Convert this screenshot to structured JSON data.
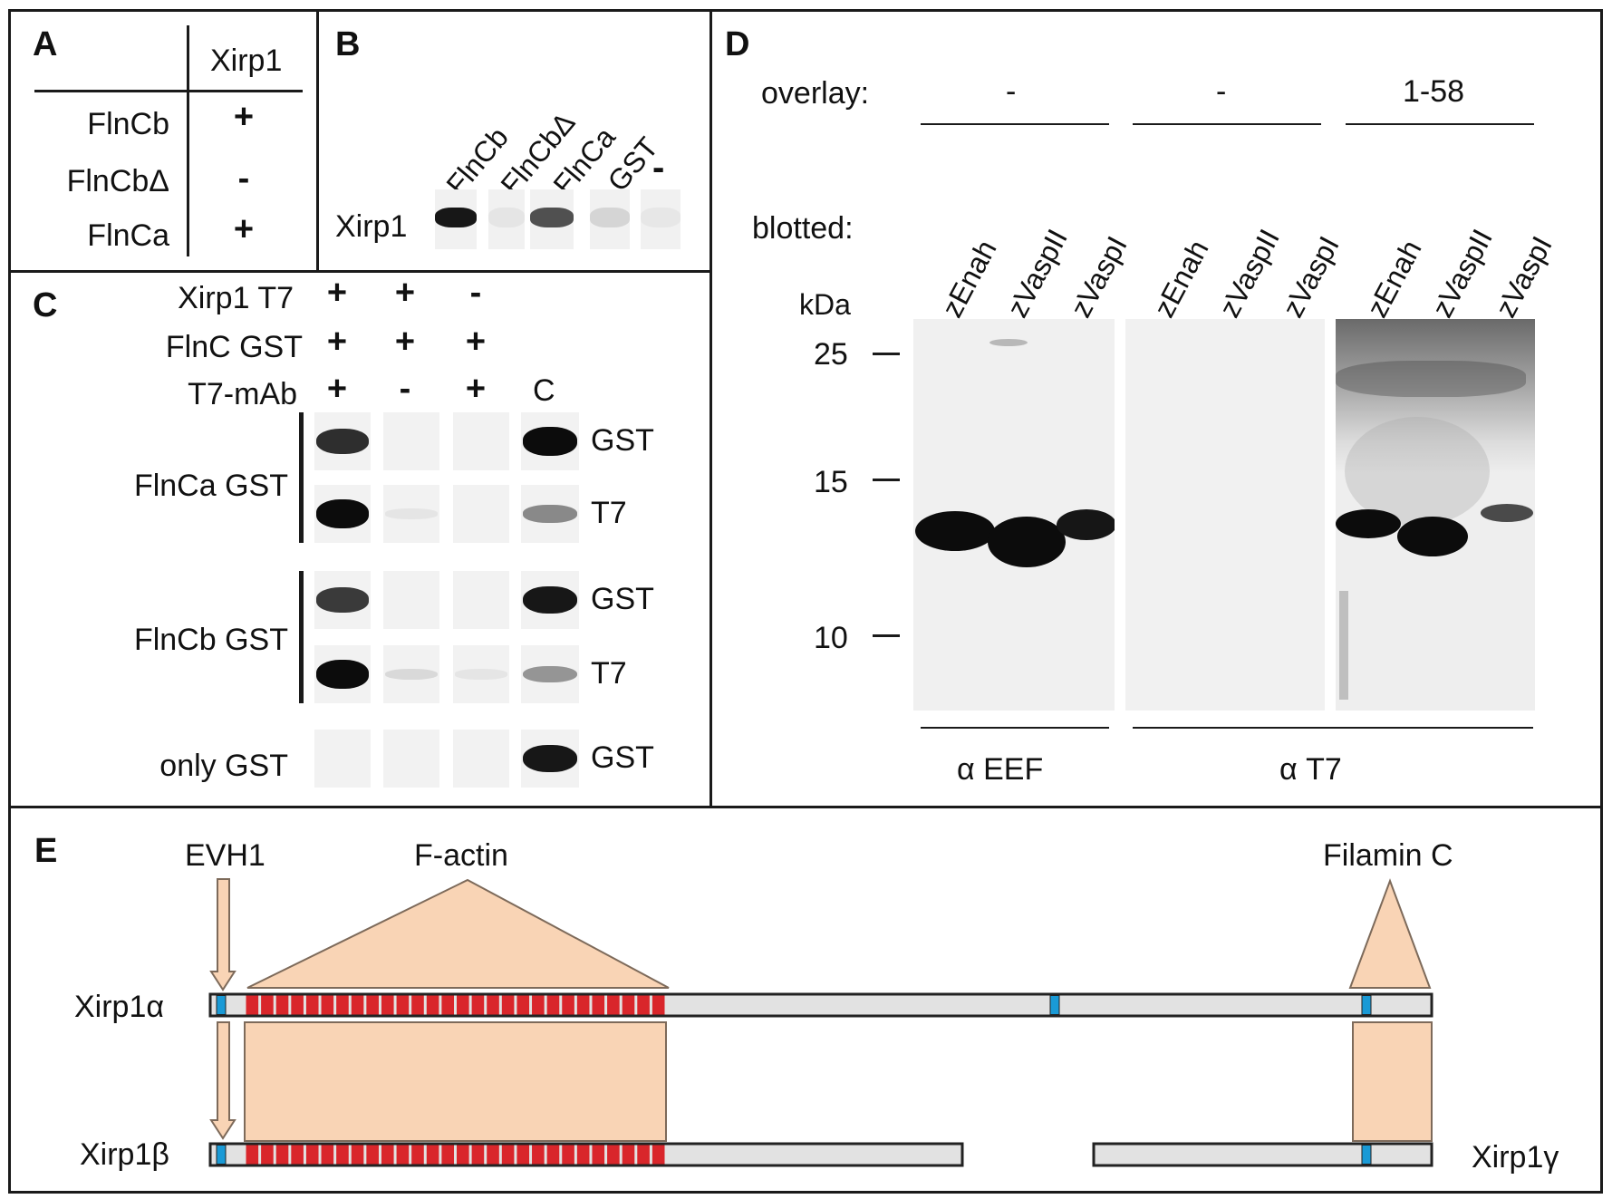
{
  "panels": {
    "A": {
      "label": "A",
      "column_header": "Xirp1",
      "rows": [
        {
          "name": "FlnCb",
          "result": "+"
        },
        {
          "name": "FlnCbΔ",
          "result": "-"
        },
        {
          "name": "FlnCa",
          "result": "+"
        }
      ]
    },
    "B": {
      "label": "B",
      "row_label": "Xirp1",
      "lanes": [
        "FlnCb",
        "FlnCbΔ",
        "FlnCa",
        "GST",
        "-"
      ],
      "band_intensity": [
        0.95,
        0.05,
        0.7,
        0.12,
        0.04
      ]
    },
    "C": {
      "label": "C",
      "conditions": [
        {
          "name": "Xirp1 T7",
          "values": [
            "+",
            "+",
            "-"
          ]
        },
        {
          "name": "FlnC GST",
          "values": [
            "+",
            "+",
            "+"
          ]
        },
        {
          "name": "T7-mAb",
          "values": [
            "+",
            "-",
            "+"
          ],
          "control": "C"
        }
      ],
      "groups": [
        {
          "name": "FlnCa GST",
          "blots": [
            {
              "probe": "GST",
              "lane_intensity": [
                0.85,
                0.0,
                0.0,
                1.0
              ]
            },
            {
              "probe": "T7",
              "lane_intensity": [
                1.0,
                0.05,
                0.0,
                0.45
              ]
            }
          ]
        },
        {
          "name": "FlnCb GST",
          "blots": [
            {
              "probe": "GST",
              "lane_intensity": [
                0.8,
                0.0,
                0.0,
                0.95
              ]
            },
            {
              "probe": "T7",
              "lane_intensity": [
                1.0,
                0.1,
                0.05,
                0.4
              ]
            }
          ]
        },
        {
          "name": "only GST",
          "blots": [
            {
              "probe": "GST",
              "lane_intensity": [
                0.0,
                0.0,
                0.0,
                0.95
              ]
            }
          ]
        }
      ]
    },
    "D": {
      "label": "D",
      "overlay_label": "overlay:",
      "overlay_groups": [
        "-",
        "-",
        "1-58"
      ],
      "blotted_label": "blotted:",
      "lanes": [
        "zEnah",
        "zVaspII",
        "zVaspI",
        "zEnah",
        "zVaspII",
        "zVaspI",
        "zEnah",
        "zVaspII",
        "zVaspI"
      ],
      "marker_unit": "kDa",
      "markers": [
        "25",
        "15",
        "10"
      ],
      "antibodies": [
        "α EEF",
        "α T7"
      ]
    },
    "E": {
      "label": "E",
      "domains": [
        "EVH1",
        "F-actin",
        "Filamin C"
      ],
      "isoforms": [
        "Xirp1α",
        "Xirp1β",
        "Xirp1γ"
      ],
      "colors": {
        "repeat": "#d9262b",
        "motif": "#1a9ad6",
        "bar": "#e2e2e2",
        "domain_fill": "#f9d4b5",
        "domain_stroke": "#7d6a5a"
      },
      "xir_repeat_count": 28
    }
  }
}
